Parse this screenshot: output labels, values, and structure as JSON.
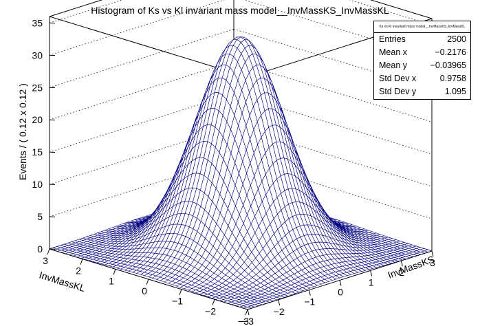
{
  "chart_data": {
    "type": "surface",
    "title": "Histogram of Ks vs Kl invariant mass model__InvMassKS_InvMassKL",
    "xlabel": "InvMassKS",
    "ylabel": "InvMassKL",
    "zlabel": "Events / ( 0.12 x 0.12 )",
    "xlim": [
      -3,
      3
    ],
    "ylim": [
      -3,
      3
    ],
    "zlim": [
      0,
      36
    ],
    "xticks": [
      "−3",
      "−2",
      "−1",
      "0",
      "1",
      "2",
      "3"
    ],
    "yticks": [
      "−3",
      "−2",
      "−1",
      "0",
      "1",
      "2",
      "3"
    ],
    "zticks": [
      "0",
      "5",
      "10",
      "15",
      "20",
      "25",
      "30",
      "35"
    ],
    "surface_model": {
      "form": "2D Gaussian",
      "peak": 33,
      "mean_x": 0,
      "mean_y": 0,
      "sigma_x": 1.0,
      "sigma_y": 1.0,
      "bins_x": 50,
      "bins_y": 50
    },
    "color": "#000080",
    "stats_box": {
      "header": "Ks vs Kl invariant mass model__InvMassKS_InvMassKL",
      "rows": [
        {
          "label": "Entries",
          "value": "2500"
        },
        {
          "label": "Mean x",
          "value": "−0.2176"
        },
        {
          "label": "Mean y",
          "value": "−0.03965"
        },
        {
          "label": "Std Dev x",
          "value": "0.9758"
        },
        {
          "label": "Std Dev y",
          "value": "1.095"
        }
      ]
    }
  }
}
